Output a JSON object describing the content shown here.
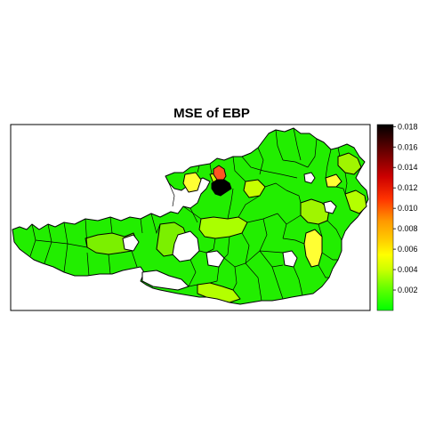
{
  "title": "MSE of EBP",
  "legend": {
    "ticks": [
      "0.002",
      "0.004",
      "0.006",
      "0.008",
      "0.010",
      "0.012",
      "0.014",
      "0.016",
      "0.018"
    ],
    "min": 0.0,
    "max": 0.0182,
    "gradient": [
      "#00ff00",
      "#66ff00",
      "#ccff00",
      "#ffff00",
      "#ffcc00",
      "#ff9900",
      "#ff3300",
      "#cc0000",
      "#660000",
      "#000000"
    ]
  },
  "map": {
    "region": "Austria",
    "fill_colors": {
      "low": "#22ee00",
      "low_mid": "#7bf000",
      "mid": "#c8ff00",
      "yellow": "#ffff33",
      "orange": "#ff5522",
      "max": "#000000",
      "missing": "#ffffff"
    }
  }
}
